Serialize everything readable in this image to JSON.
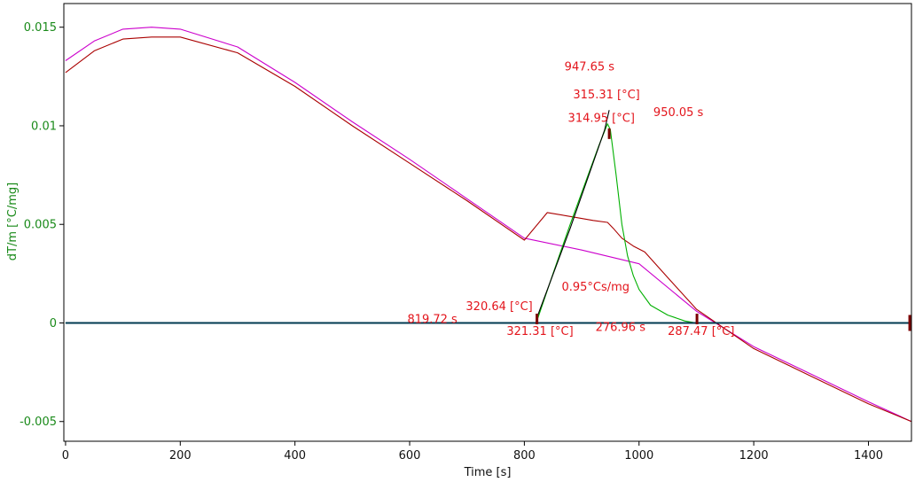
{
  "chart_data": {
    "type": "line",
    "title": "",
    "xlabel": "Time [s]",
    "ylabel": "dT/m  [°C/mg]",
    "xlim": [
      -3,
      1475
    ],
    "ylim": [
      -0.006,
      0.0162
    ],
    "x_ticks": [
      0,
      200,
      400,
      600,
      800,
      1000,
      1200,
      1400
    ],
    "x_tick_labels": [
      "0",
      "200",
      "400",
      "600",
      "800",
      "1000",
      "1200",
      "1400"
    ],
    "y_ticks": [
      -0.005,
      0,
      0.005,
      0.01,
      0.015
    ],
    "y_tick_labels": [
      "-0.005",
      "0",
      "0.005",
      "0.01",
      "0.015"
    ],
    "grid": false,
    "colors": {
      "magenta_series": "#cc00cc",
      "darkred_series": "#aa0000",
      "green_series": "#00b000",
      "baseline": "#003a50",
      "black_series": "#000000",
      "markers": "#7a0000",
      "annotations": "#e3141b",
      "y_axis_text": "#1a8a1a"
    },
    "series": [
      {
        "color": "#cc00cc",
        "x": [
          0,
          50,
          100,
          150,
          200,
          300,
          400,
          500,
          600,
          700,
          800,
          900,
          1000,
          1100,
          1200,
          1300,
          1400,
          1475
        ],
        "y": [
          0.0133,
          0.0143,
          0.0149,
          0.015,
          0.0149,
          0.014,
          0.0122,
          0.0102,
          0.0083,
          0.0063,
          0.0043,
          0.0037,
          0.003,
          0.0006,
          -0.0012,
          -0.0026,
          -0.004,
          -0.005
        ]
      },
      {
        "color": "#aa0000",
        "x": [
          0,
          50,
          100,
          150,
          200,
          300,
          400,
          500,
          600,
          700,
          800,
          840,
          880,
          920,
          945,
          955,
          970,
          990,
          1010,
          1050,
          1100,
          1200,
          1300,
          1400,
          1475
        ],
        "y": [
          0.0127,
          0.0138,
          0.0144,
          0.0145,
          0.0145,
          0.0137,
          0.012,
          0.01,
          0.0081,
          0.0062,
          0.0042,
          0.0056,
          0.0054,
          0.0052,
          0.0051,
          0.0048,
          0.0043,
          0.0039,
          0.0036,
          0.0023,
          0.0007,
          -0.0013,
          -0.0027,
          -0.0041,
          -0.005
        ]
      },
      {
        "color": "#00b000",
        "x": [
          0,
          820,
          823,
          850,
          880,
          910,
          930,
          945,
          950,
          960,
          970,
          980,
          990,
          1000,
          1020,
          1050,
          1080,
          1100,
          1200,
          1475
        ],
        "y": [
          0,
          0,
          0.0002,
          0.0025,
          0.005,
          0.0074,
          0.009,
          0.0101,
          0.0098,
          0.0075,
          0.005,
          0.0034,
          0.0024,
          0.0017,
          0.0009,
          0.0004,
          0.0001,
          0,
          0,
          0
        ]
      },
      {
        "color": "#000000",
        "x": [
          821,
          880,
          940,
          948
        ],
        "y": [
          0.0002,
          0.0048,
          0.0098,
          0.0108
        ]
      },
      {
        "color": "#003a50",
        "x": [
          0,
          1475
        ],
        "y": [
          0,
          0
        ]
      }
    ],
    "markers": [
      {
        "x": 822,
        "y": 0.0002
      },
      {
        "x": 948,
        "y": 0.0096
      },
      {
        "x": 1101,
        "y": 0.0002
      },
      {
        "x": 1472,
        "y": 0
      }
    ],
    "annotations": [
      {
        "text": "947.65 s",
        "x": 870,
        "y": 0.0128
      },
      {
        "text": "315.31 [°C]",
        "x": 885,
        "y": 0.0114
      },
      {
        "text": "314.95 [°C]",
        "x": 876,
        "y": 0.0102
      },
      {
        "text": "950.05 s",
        "x": 1025,
        "y": 0.0105
      },
      {
        "text": "0.95°Cs/mg",
        "x": 865,
        "y": 0.00165
      },
      {
        "text": "320.64 [°C]",
        "x": 698,
        "y": 0.00065
      },
      {
        "text": "819.72 s",
        "x": 596,
        "y": 0.0
      },
      {
        "text": "321.31 [°C]",
        "x": 769,
        "y": -0.0006
      },
      {
        "text": "276.96 s",
        "x": 924,
        "y": -0.0004
      },
      {
        "text": "287.47 [°C]",
        "x": 1050,
        "y": -0.0006
      }
    ]
  }
}
